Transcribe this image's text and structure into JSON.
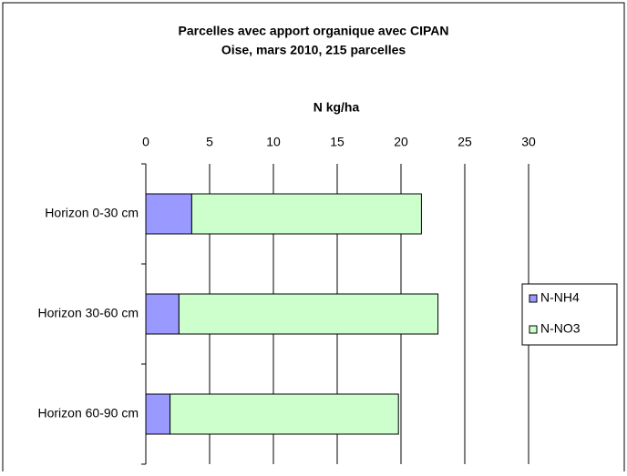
{
  "chart_data": {
    "type": "stacked-barh",
    "title": "Parcelles avec apport organique avec CIPAN",
    "subtitle": "Oise, mars 2010, 215 parcelles",
    "x_label": "N kg/ha",
    "categories": [
      "Horizon 0-30 cm",
      "Horizon 30-60 cm",
      "Horizon 60-90 cm"
    ],
    "series": [
      {
        "name": "N-NH4",
        "color": "#9999ff",
        "values": [
          3.6,
          2.6,
          1.9
        ]
      },
      {
        "name": "N-NO3",
        "color": "#ccffcc",
        "values": [
          18.0,
          20.3,
          17.9
        ]
      }
    ],
    "xlim": [
      0,
      30
    ],
    "xticks": [
      0,
      5,
      10,
      15,
      20,
      25,
      30
    ],
    "grid": true,
    "legend": "right"
  }
}
